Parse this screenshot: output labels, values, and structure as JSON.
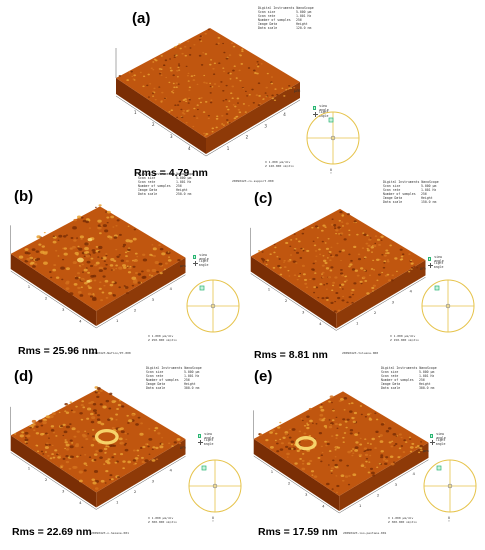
{
  "panels": [
    {
      "letter": "(a)",
      "rms": "Rms = 4.79 nm",
      "instrument": "Digital Instruments NanoScope",
      "scan_size_label": "Scan size",
      "scan_size": "5.000 µm",
      "scan_rate_label": "Scan rate",
      "scan_rate": "1.001 Hz",
      "samples_label": "Number of samples",
      "samples": "256",
      "image_data_label": "Image Data",
      "image_data": "Height",
      "data_scale_label": "Data scale",
      "data_scale": "120.0 nm",
      "scale_x": "X  1.000 µm/div",
      "scale_z": "Z  120.000 nm/div",
      "file": "20090423-cs-support.000",
      "view_angle": "view angle",
      "light_angle": "light angle",
      "angle_zero": "0 °",
      "axis_um": "µm",
      "ticks": [
        "1",
        "2",
        "3",
        "4"
      ]
    },
    {
      "letter": "(b)",
      "rms": "Rms = 25.96 nm",
      "instrument": "Digital Instruments NanoScope",
      "scan_size_label": "Scan size",
      "scan_size": "5.000 µm",
      "scan_rate_label": "Scan rate",
      "scan_rate": "1.001 Hz",
      "samples_label": "Number of samples",
      "samples": "256",
      "image_data_label": "Image Data",
      "image_data": "Height",
      "data_scale_label": "Data scale",
      "data_scale": "250.0 nm",
      "scale_x": "X  1.000 µm/div",
      "scale_z": "Z  250.000 nm/div",
      "file": "20090423-Nafion/Pt.000",
      "view_angle": "view angle",
      "light_angle": "light angle",
      "angle_zero": "0 °",
      "axis_um": "µm",
      "ticks": [
        "1",
        "2",
        "3",
        "4"
      ]
    },
    {
      "letter": "(c)",
      "rms": "Rms = 8.81 nm",
      "instrument": "Digital Instruments NanoScope",
      "scan_size_label": "Scan size",
      "scan_size": "5.000 µm",
      "scan_rate_label": "Scan rate",
      "scan_rate": "1.001 Hz",
      "samples_label": "Number of samples",
      "samples": "256",
      "image_data_label": "Image Data",
      "image_data": "Height",
      "data_scale_label": "Data scale",
      "data_scale": "150.0 nm",
      "scale_x": "X  1.000 µm/div",
      "scale_z": "Z  150.000 nm/div",
      "file": "20090423-toluene.000",
      "view_angle": "view angle",
      "light_angle": "light angle",
      "angle_zero": "0 °",
      "axis_um": "µm",
      "ticks": [
        "1",
        "2",
        "3",
        "4"
      ]
    },
    {
      "letter": "(d)",
      "rms": "Rms = 22.69 nm",
      "instrument": "Digital Instruments NanoScope",
      "scan_size_label": "Scan size",
      "scan_size": "5.000 µm",
      "scan_rate_label": "Scan rate",
      "scan_rate": "1.001 Hz",
      "samples_label": "Number of samples",
      "samples": "256",
      "image_data_label": "Image Data",
      "image_data": "Height",
      "data_scale_label": "Data scale",
      "data_scale": "300.0 nm",
      "scale_x": "X  1.000 µm/div",
      "scale_z": "Z  300.000 nm/div",
      "file": "20090423-n-hexane.001",
      "view_angle": "view angle",
      "light_angle": "light angle",
      "angle_zero": "0 °",
      "axis_um": "µm",
      "ticks": [
        "1",
        "2",
        "3",
        "4"
      ]
    },
    {
      "letter": "(e)",
      "rms": "Rms = 17.59 nm",
      "instrument": "Digital Instruments NanoScope",
      "scan_size_label": "Scan size",
      "scan_size": "5.000 µm",
      "scan_rate_label": "Scan rate",
      "scan_rate": "1.001 Hz",
      "samples_label": "Number of samples",
      "samples": "256",
      "image_data_label": "Image Data",
      "image_data": "Height",
      "data_scale_label": "Data scale",
      "data_scale": "300.0 nm",
      "scale_x": "X  1.000 µm/div",
      "scale_z": "Z  300.000 nm/div",
      "file": "20090423-iso-pentane.001",
      "view_angle": "view angle",
      "light_angle": "light angle",
      "angle_zero": "0 °",
      "axis_um": "µm",
      "ticks": [
        "1",
        "2",
        "3",
        "4"
      ]
    }
  ],
  "colors": {
    "surface_dark": "#7a2e05",
    "surface_mid": "#c0560f",
    "surface_light": "#e8a033",
    "peak": "#f6d36a",
    "dial": "#e6c34a"
  }
}
